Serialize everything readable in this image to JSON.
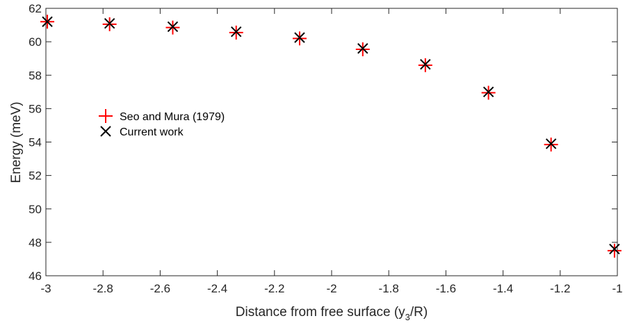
{
  "chart_data": {
    "type": "scatter",
    "xlabel_main": "Distance from free surface (y",
    "xlabel_sub": "3",
    "xlabel_tail": "/R)",
    "ylabel": "Energy (meV)",
    "xlim": [
      -3,
      -1
    ],
    "ylim": [
      46,
      62
    ],
    "xticks": [
      -3,
      -2.8,
      -2.6,
      -2.4,
      -2.2,
      -2,
      -1.8,
      -1.6,
      -1.4,
      -1.2,
      -1
    ],
    "xtick_labels": [
      "-3",
      "-2.8",
      "-2.6",
      "-2.4",
      "-2.2",
      "-2",
      "-1.8",
      "-1.6",
      "-1.4",
      "-1.2",
      "-1"
    ],
    "yticks": [
      46,
      48,
      50,
      52,
      54,
      56,
      58,
      60,
      62
    ],
    "ytick_labels": [
      "46",
      "48",
      "50",
      "52",
      "54",
      "56",
      "58",
      "60",
      "62"
    ],
    "grid": false,
    "legend_position": "center-left",
    "series": [
      {
        "name": "Seo and Mura (1979)",
        "marker": "plus",
        "color": "#ff0000",
        "x": [
          -2.995,
          -2.777,
          -2.556,
          -2.334,
          -2.112,
          -1.891,
          -1.672,
          -1.451,
          -1.232,
          -1.01
        ],
        "y": [
          61.2,
          61.05,
          60.85,
          60.55,
          60.2,
          59.55,
          58.6,
          56.95,
          53.85,
          47.5
        ]
      },
      {
        "name": "Current work",
        "marker": "x",
        "color": "#000000",
        "x": [
          -2.995,
          -2.777,
          -2.556,
          -2.334,
          -2.112,
          -1.891,
          -1.672,
          -1.451,
          -1.232,
          -1.01
        ],
        "y": [
          61.2,
          61.1,
          60.9,
          60.6,
          60.25,
          59.6,
          58.65,
          57.0,
          53.9,
          47.6
        ]
      }
    ]
  }
}
